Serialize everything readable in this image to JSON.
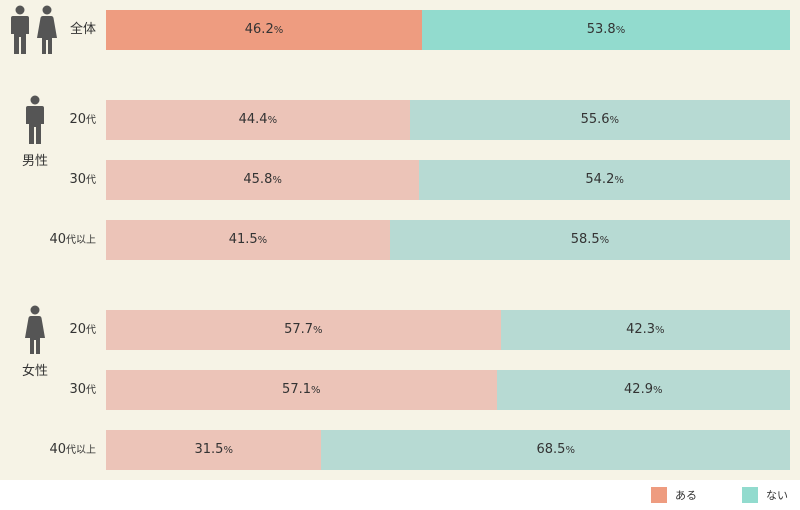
{
  "chart_data": {
    "type": "bar",
    "orientation": "horizontal",
    "stacked": true,
    "unit": "%",
    "categories": [
      "全体",
      "男性 20代",
      "男性 30代",
      "男性 40代以上",
      "女性 20代",
      "女性 30代",
      "女性 40代以上"
    ],
    "groups": [
      {
        "label": "",
        "icon": "man-and-woman-icon",
        "rows": [
          {
            "label_num": "全体",
            "label_suf": "",
            "values": [
              46.2,
              53.8
            ],
            "highlight": true
          }
        ]
      },
      {
        "label": "男性",
        "icon": "man-icon",
        "rows": [
          {
            "label_num": "20",
            "label_suf": "代",
            "values": [
              44.4,
              55.6
            ]
          },
          {
            "label_num": "30",
            "label_suf": "代",
            "values": [
              45.8,
              54.2
            ]
          },
          {
            "label_num": "40",
            "label_suf": "代以上",
            "values": [
              41.5,
              58.5
            ]
          }
        ]
      },
      {
        "label": "女性",
        "icon": "woman-icon",
        "rows": [
          {
            "label_num": "20",
            "label_suf": "代",
            "values": [
              57.7,
              42.3
            ]
          },
          {
            "label_num": "30",
            "label_suf": "代",
            "values": [
              57.1,
              42.9
            ]
          },
          {
            "label_num": "40",
            "label_suf": "代以上",
            "values": [
              31.5,
              68.5
            ]
          }
        ]
      }
    ],
    "series": [
      {
        "name": "ある",
        "values": [
          46.2,
          44.4,
          45.8,
          41.5,
          57.7,
          57.1,
          31.5
        ]
      },
      {
        "name": "ない",
        "values": [
          53.8,
          55.6,
          54.2,
          58.5,
          42.3,
          42.9,
          68.5
        ]
      }
    ],
    "xlim": [
      0,
      100
    ],
    "legend_position": "bottom-right",
    "grid": false
  },
  "colors": {
    "background": "#f6f3e6",
    "icon": "#555555",
    "yes_highlight": "#ee9c80",
    "no_highlight": "#92dbce",
    "yes": "#ecc4b8",
    "no": "#b7dad3"
  }
}
